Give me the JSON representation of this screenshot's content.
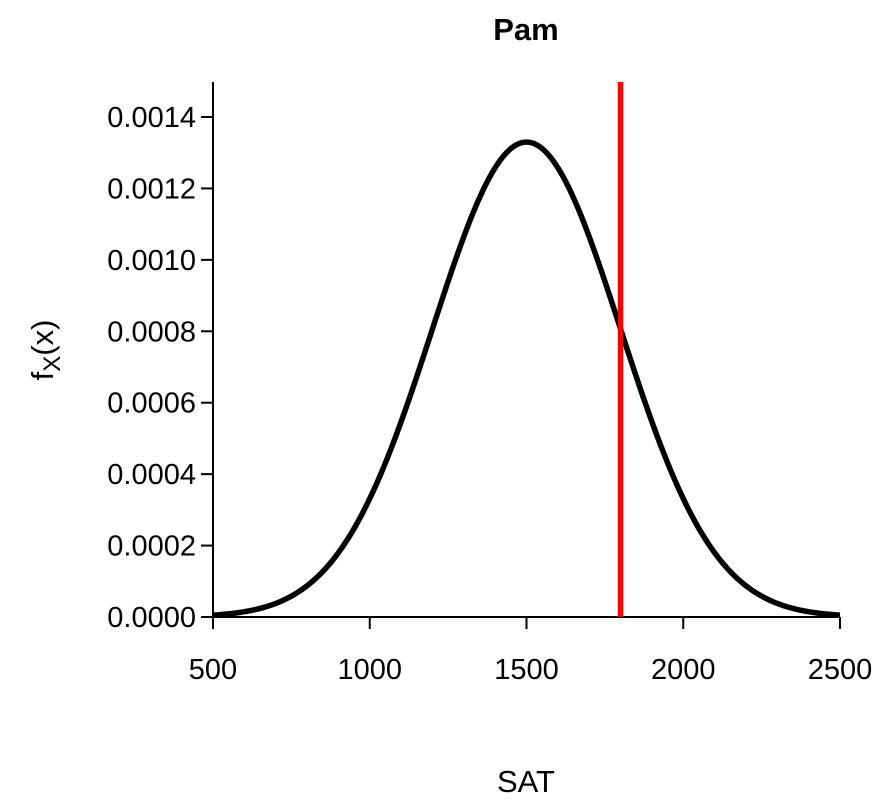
{
  "chart_data": {
    "type": "line",
    "title": "Pam",
    "xlabel": "SAT",
    "ylabel": {
      "main": "f",
      "subscript": "X",
      "suffix": "(x)"
    },
    "xlim": [
      500,
      2500
    ],
    "ylim": [
      0,
      0.0015
    ],
    "x_ticks": [
      500,
      1000,
      1500,
      2000,
      2500
    ],
    "x_tick_labels": [
      "500",
      "1000",
      "1500",
      "2000",
      "2500"
    ],
    "y_ticks": [
      0,
      0.0002,
      0.0004,
      0.0006,
      0.0008,
      0.001,
      0.0012,
      0.0014
    ],
    "y_tick_labels": [
      "0.0000",
      "0.0002",
      "0.0004",
      "0.0006",
      "0.0008",
      "0.0010",
      "0.0012",
      "0.0014"
    ],
    "series": [
      {
        "distribution": "normal",
        "mean": 1500,
        "sd": 300,
        "color": "#000000"
      }
    ],
    "vertical_line": {
      "x": 1800,
      "color": "#ff0000"
    },
    "grid": false,
    "legend": "none"
  }
}
